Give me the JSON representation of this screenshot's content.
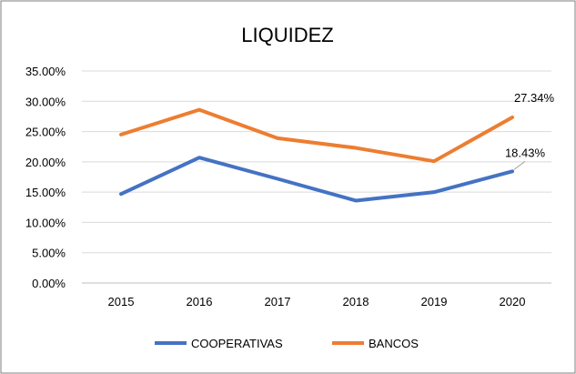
{
  "chart_data": {
    "type": "line",
    "title": "LIQUIDEZ",
    "xlabel": "",
    "ylabel": "",
    "categories": [
      "2015",
      "2016",
      "2017",
      "2018",
      "2019",
      "2020"
    ],
    "ylim": [
      0,
      35
    ],
    "yticks": [
      "0.00%",
      "5.00%",
      "10.00%",
      "15.00%",
      "20.00%",
      "25.00%",
      "30.00%",
      "35.00%"
    ],
    "grid": true,
    "legend_position": "bottom",
    "series": [
      {
        "name": "COOPERATIVAS",
        "color": "#4472C4",
        "values": [
          14.7,
          20.7,
          17.2,
          13.6,
          15.0,
          18.43
        ],
        "label_last": "18.43%"
      },
      {
        "name": "BANCOS",
        "color": "#ED7D31",
        "values": [
          24.5,
          28.6,
          23.9,
          22.3,
          20.1,
          27.34
        ],
        "label_last": "27.34%"
      }
    ]
  }
}
